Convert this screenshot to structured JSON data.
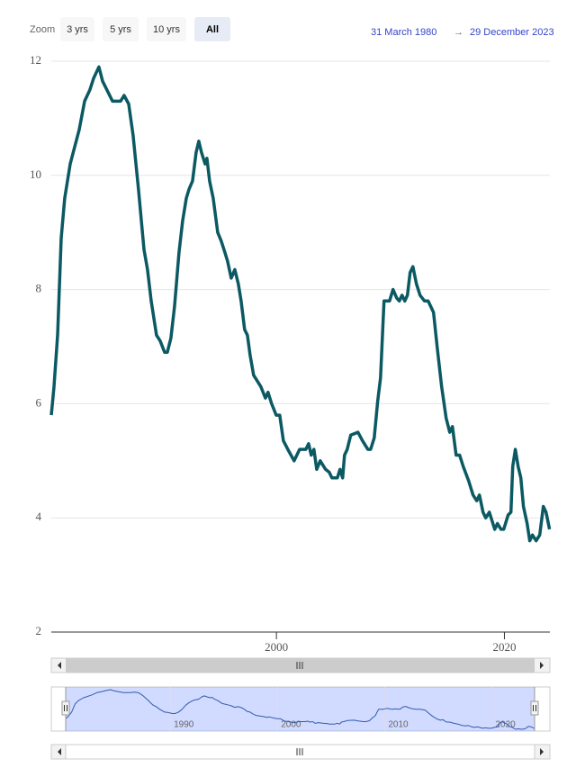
{
  "chart_data": {
    "type": "line",
    "zoom_label": "Zoom",
    "zoom_buttons": [
      "3 yrs",
      "5 yrs",
      "10 yrs",
      "All"
    ],
    "selected_button": 3,
    "range_from": "31 March 1980",
    "range_arrow": "→",
    "range_to": "29 December 2023",
    "color": "#0b5963",
    "x": [
      1980.25,
      1980.49,
      1980.8,
      1981.12,
      1981.43,
      1981.91,
      1982.7,
      1983.17,
      1983.64,
      1983.96,
      1984.43,
      1984.75,
      1985.62,
      1986.33,
      1986.64,
      1987.04,
      1987.43,
      1987.9,
      1988.38,
      1988.69,
      1989.01,
      1989.48,
      1989.8,
      1990.19,
      1990.43,
      1990.74,
      1991.06,
      1991.45,
      1991.77,
      1992.09,
      1992.32,
      1992.64,
      1992.95,
      1993.19,
      1993.43,
      1993.74,
      1993.9,
      1994.14,
      1994.45,
      1994.85,
      1995.16,
      1995.48,
      1995.71,
      1996.03,
      1996.35,
      1996.66,
      1996.9,
      1997.21,
      1997.45,
      1997.69,
      1998.0,
      1998.63,
      1999.03,
      1999.26,
      1999.58,
      1999.98,
      2000.29,
      2000.61,
      2001.0,
      2001.55,
      2002.03,
      2002.58,
      2002.82,
      2003.05,
      2003.29,
      2003.53,
      2003.84,
      2004.31,
      2004.63,
      2004.87,
      2005.34,
      2005.58,
      2005.81,
      2005.97,
      2006.21,
      2006.52,
      2007.15,
      2007.55,
      2008.02,
      2008.26,
      2008.58,
      2008.89,
      2009.13,
      2009.44,
      2009.92,
      2010.23,
      2010.55,
      2010.78,
      2011.02,
      2011.26,
      2011.49,
      2011.73,
      2011.97,
      2012.28,
      2012.6,
      2012.99,
      2013.31,
      2013.78,
      2014.1,
      2014.49,
      2014.89,
      2015.2,
      2015.44,
      2015.76,
      2016.07,
      2016.39,
      2016.86,
      2017.25,
      2017.57,
      2017.81,
      2018.12,
      2018.36,
      2018.68,
      2018.91,
      2019.15,
      2019.39,
      2019.7,
      2019.94,
      2020.33,
      2020.57,
      2020.73,
      2020.96,
      2021.2,
      2021.44,
      2021.67,
      2021.99,
      2022.22,
      2022.46,
      2022.78,
      2023.1,
      2023.41,
      2023.65,
      2023.96
    ],
    "values": [
      5.8,
      6.3,
      7.2,
      8.9,
      9.6,
      10.2,
      10.8,
      11.3,
      11.5,
      11.7,
      11.9,
      11.65,
      11.3,
      11.3,
      11.4,
      11.25,
      10.7,
      9.75,
      8.7,
      8.35,
      7.8,
      7.2,
      7.1,
      6.9,
      6.9,
      7.15,
      7.7,
      8.65,
      9.2,
      9.6,
      9.75,
      9.9,
      10.4,
      10.6,
      10.4,
      10.2,
      10.3,
      9.9,
      9.6,
      9.0,
      8.85,
      8.65,
      8.5,
      8.2,
      8.35,
      8.1,
      7.8,
      7.3,
      7.2,
      6.85,
      6.5,
      6.3,
      6.1,
      6.2,
      6.0,
      5.8,
      5.8,
      5.35,
      5.2,
      5.0,
      5.2,
      5.2,
      5.3,
      5.1,
      5.2,
      4.85,
      5.0,
      4.85,
      4.8,
      4.7,
      4.7,
      4.85,
      4.7,
      5.1,
      5.2,
      5.45,
      5.5,
      5.35,
      5.2,
      5.2,
      5.4,
      6.05,
      6.45,
      7.8,
      7.8,
      8.0,
      7.85,
      7.8,
      7.9,
      7.8,
      7.9,
      8.3,
      8.4,
      8.1,
      7.9,
      7.8,
      7.8,
      7.6,
      7.0,
      6.3,
      5.75,
      5.5,
      5.6,
      5.1,
      5.1,
      4.9,
      4.65,
      4.4,
      4.3,
      4.4,
      4.1,
      4.0,
      4.1,
      3.95,
      3.8,
      3.9,
      3.8,
      3.8,
      4.05,
      4.1,
      4.9,
      5.2,
      4.9,
      4.7,
      4.2,
      3.9,
      3.6,
      3.7,
      3.6,
      3.7,
      4.2,
      4.1,
      3.8
    ],
    "xlim": [
      1980.25,
      2023.99
    ],
    "xticks": [
      2000,
      2020
    ],
    "ylim": [
      2,
      12
    ],
    "yticks": [
      2,
      4,
      6,
      8,
      10,
      12
    ],
    "grid": true,
    "navigator_xticks": [
      1990,
      2000,
      2010,
      2020
    ]
  }
}
